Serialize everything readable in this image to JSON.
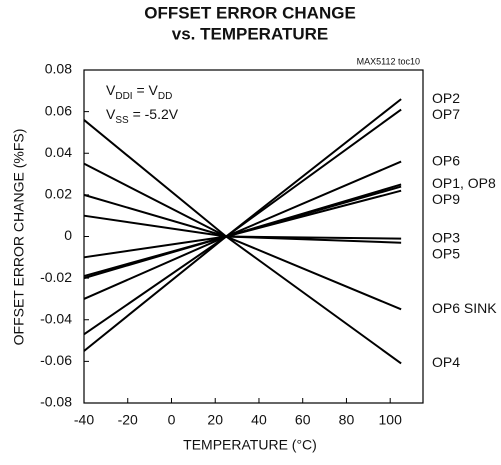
{
  "chart_data": {
    "type": "line",
    "title": "OFFSET ERROR CHANGE",
    "subtitle": "vs. TEMPERATURE",
    "note": "MAX5112 toc10",
    "x_label": "TEMPERATURE (°C)",
    "y_label": "OFFSET ERROR CHANGE (%FS)",
    "annotation": [
      [
        "V",
        "DDI",
        " = V",
        "DD"
      ],
      [
        "V",
        "SS",
        " = -5.2V"
      ]
    ],
    "x": [
      -40,
      25,
      105
    ],
    "xlim": [
      -40,
      115
    ],
    "xticks": [
      -40,
      -20,
      0,
      20,
      40,
      60,
      80,
      100
    ],
    "ylim": [
      -0.08,
      0.08
    ],
    "yticks": [
      0.08,
      0.06,
      0.04,
      0.02,
      0,
      -0.02,
      -0.04,
      -0.06,
      -0.08
    ],
    "series": [
      {
        "name": "OP2",
        "color": "#000000",
        "values": [
          -0.055,
          0,
          0.066
        ]
      },
      {
        "name": "OP7",
        "color": "#000000",
        "values": [
          -0.047,
          0,
          0.061
        ]
      },
      {
        "name": "OP6",
        "color": "#000000",
        "values": [
          -0.03,
          0,
          0.036
        ]
      },
      {
        "name": "OP1, OP8",
        "color": "#000000",
        "values": [
          -0.02,
          0,
          0.025
        ]
      },
      {
        "color": "#000000",
        "values": [
          -0.019,
          0,
          0.024
        ]
      },
      {
        "name": "OP9",
        "color": "#000000",
        "values": [
          -0.01,
          0,
          0.022
        ]
      },
      {
        "name": "OP3",
        "color": "#000000",
        "values": [
          0.01,
          0,
          -0.001
        ]
      },
      {
        "name": "OP5",
        "color": "#000000",
        "values": [
          0.02,
          0,
          -0.003
        ]
      },
      {
        "name": "OP6 SINK",
        "color": "#000000",
        "values": [
          0.035,
          0,
          -0.035
        ]
      },
      {
        "name": "OP4",
        "color": "#000000",
        "values": [
          0.056,
          0,
          -0.061
        ]
      }
    ]
  }
}
